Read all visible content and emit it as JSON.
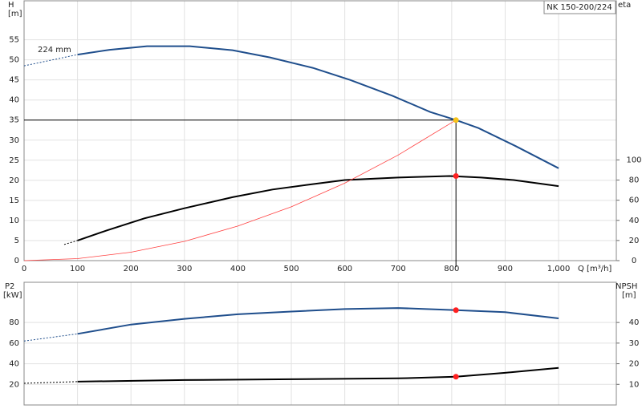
{
  "chart_data": [
    {
      "type": "line",
      "title": "NK 150-200/224",
      "ylabel": "H",
      "yunit": "[m]",
      "y2label": "eta",
      "xlabel": "Q [m³/h]",
      "annotation": "224 mm",
      "xlim": [
        0,
        1108
      ],
      "xticks": [
        0,
        100,
        200,
        300,
        400,
        500,
        600,
        700,
        800,
        900,
        {
          "value": 1000,
          "label": "1,000"
        }
      ],
      "ylim": [
        0,
        64.7
      ],
      "yticks": [
        0,
        5,
        10,
        15,
        20,
        25,
        30,
        35,
        40,
        45,
        50,
        55
      ],
      "y2lim": [
        0,
        258
      ],
      "y2ticks": [
        0,
        20,
        40,
        60,
        80,
        100
      ],
      "grid": true,
      "series": [
        {
          "color": "#1f4e8c",
          "width": 2,
          "x": [
            100,
            160,
            230,
            310,
            390,
            460,
            540,
            610,
            690,
            760,
            808,
            850,
            920,
            1000
          ],
          "values": [
            51.3,
            52.5,
            53.4,
            53.4,
            52.4,
            50.6,
            48,
            45,
            41,
            37,
            35,
            33,
            28.5,
            23
          ]
        },
        {
          "color": "#1f4e8c",
          "width": 1,
          "dash": true,
          "x": [
            0,
            100
          ],
          "values": [
            48.5,
            51.3
          ]
        },
        {
          "color": "#000000",
          "width": 2,
          "axis": "y2",
          "x": [
            100,
            155,
            225,
            300,
            390,
            465,
            540,
            600,
            700,
            796,
            855,
            916,
            1000
          ],
          "values": [
            20,
            30,
            42,
            52,
            63,
            70.6,
            76,
            80,
            82.5,
            84,
            82.5,
            80,
            74
          ]
        },
        {
          "color": "#000000",
          "width": 1,
          "dash": true,
          "axis": "y2",
          "x": [
            75,
            100
          ],
          "values": [
            16,
            20
          ]
        },
        {
          "color": "#ff4040",
          "width": 0.8,
          "x": [
            0,
            100,
            200,
            300,
            400,
            500,
            600,
            700,
            808
          ],
          "values": [
            0,
            0.5,
            2.1,
            4.8,
            8.6,
            13.4,
            19.3,
            26.3,
            35
          ]
        }
      ],
      "crosshair": {
        "x": 808,
        "y": 35
      },
      "markers": [
        {
          "x": 808,
          "y": 35,
          "color": "#f7c31b"
        },
        {
          "x": 808,
          "y": 84,
          "axis": "y2",
          "color": "#ff2020"
        }
      ]
    },
    {
      "type": "line",
      "ylabel": "P2",
      "yunit": "[kW]",
      "y2label": "NPSH",
      "y2unit": "[m]",
      "xlim": [
        0,
        1108
      ],
      "xticks": [
        100,
        200,
        300,
        400,
        500,
        600,
        700,
        800,
        900,
        1000
      ],
      "ylim": [
        0,
        119
      ],
      "yticks": [
        20,
        40,
        60,
        80
      ],
      "y2lim": [
        0,
        59.5
      ],
      "y2ticks": [
        10,
        20,
        30,
        40
      ],
      "grid": true,
      "series": [
        {
          "color": "#1f4e8c",
          "width": 2,
          "x": [
            100,
            200,
            300,
            400,
            500,
            600,
            700,
            808,
            900,
            1000
          ],
          "values": [
            69,
            78,
            83.5,
            88,
            90.6,
            93,
            94,
            92,
            90,
            84
          ]
        },
        {
          "color": "#1f4e8c",
          "width": 1,
          "dash": true,
          "x": [
            0,
            100
          ],
          "values": [
            62,
            69
          ]
        },
        {
          "color": "#000000",
          "width": 2,
          "axis": "y2",
          "x": [
            100,
            300,
            500,
            700,
            808,
            900,
            1000
          ],
          "values": [
            11.3,
            12.1,
            12.5,
            12.9,
            13.7,
            15.6,
            18
          ]
        },
        {
          "color": "#000000",
          "width": 1,
          "dash": true,
          "axis": "y2",
          "x": [
            0,
            100
          ],
          "values": [
            10.5,
            11.3
          ]
        }
      ],
      "markers": [
        {
          "x": 808,
          "y": 92,
          "color": "#ff2020"
        },
        {
          "x": 808,
          "y": 13.7,
          "axis": "y2",
          "color": "#ff2020"
        }
      ]
    }
  ]
}
